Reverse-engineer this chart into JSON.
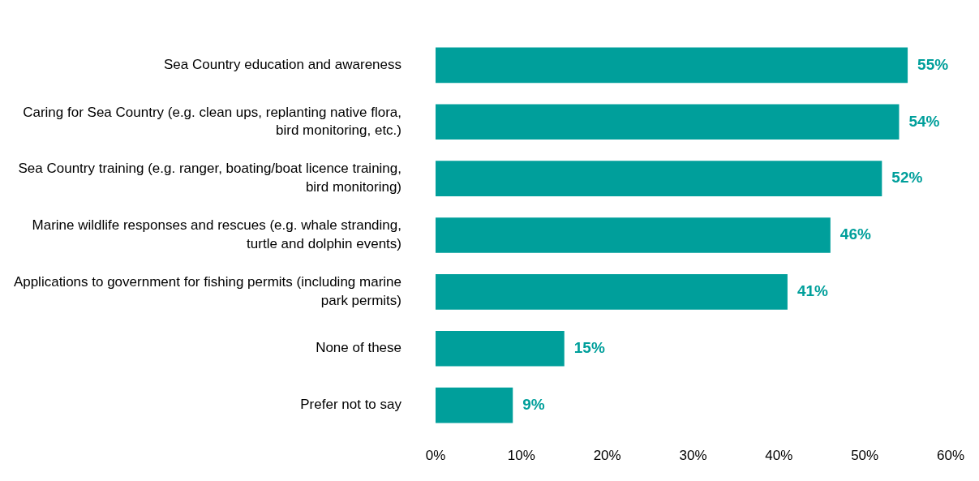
{
  "chart_data": {
    "type": "bar",
    "orientation": "horizontal",
    "categories": [
      "Sea Country education and awareness",
      "Caring for Sea Country (e.g. clean ups, replanting native flora, bird monitoring, etc.)",
      "Sea Country training (e.g. ranger, boating/boat licence training, bird monitoring)",
      "Marine wildlife responses and rescues (e.g. whale stranding, turtle and dolphin events)",
      "Applications to government for fishing permits (including marine park permits)",
      "None of these",
      "Prefer not to say"
    ],
    "values": [
      55,
      54,
      52,
      46,
      41,
      15,
      9
    ],
    "value_labels": [
      "55%",
      "54%",
      "52%",
      "46%",
      "41%",
      "15%",
      "9%"
    ],
    "color": "#009f9b",
    "xlim": [
      0,
      60
    ],
    "xticks": [
      {
        "value": 0,
        "label": "0%"
      },
      {
        "value": 10,
        "label": "10%"
      },
      {
        "value": 20,
        "label": "20%"
      },
      {
        "value": 30,
        "label": "30%"
      },
      {
        "value": 40,
        "label": "40%"
      },
      {
        "value": 50,
        "label": "50%"
      },
      {
        "value": 60,
        "label": "60%"
      }
    ],
    "grid": false,
    "legend": false
  }
}
